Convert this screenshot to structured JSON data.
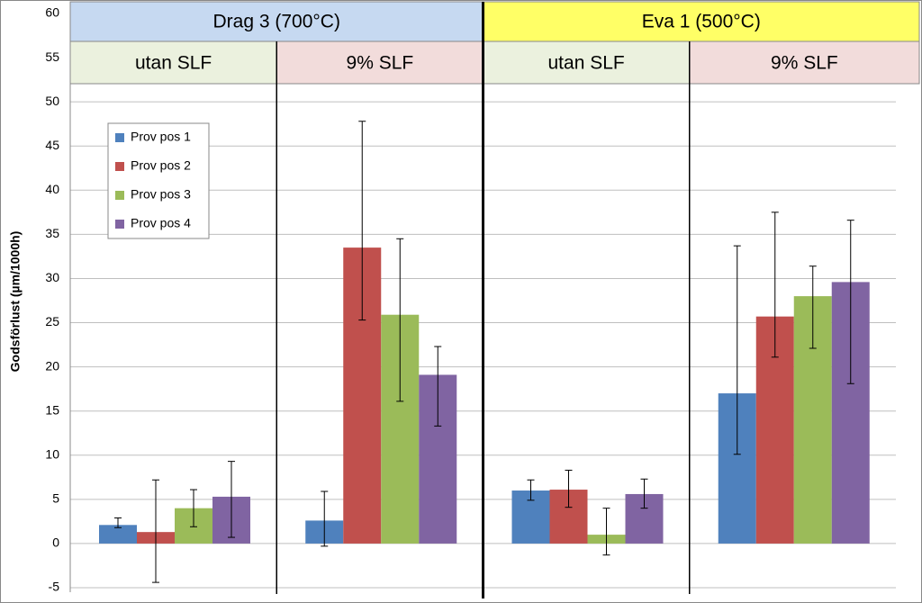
{
  "chart_data": {
    "type": "bar",
    "y_label": "Godsförlust (µm/1000h)",
    "group_labels": [
      "Drag 3 (700°C)",
      "Eva 1 (500°C)"
    ],
    "group_colors": [
      "#c6d9f1",
      "#ffff66"
    ],
    "categories": [
      "utan SLF",
      "9% SLF",
      "utan SLF",
      "9% SLF"
    ],
    "category_colors": [
      "#ebf1de",
      "#f2dcdb",
      "#ebf1de",
      "#f2dcdb"
    ],
    "series": [
      {
        "name": "Prov pos 1",
        "color": "#4f81bd",
        "values": [
          2.1,
          2.6,
          6.0,
          17.0
        ],
        "error_plus": [
          0.8,
          3.3,
          1.2,
          16.7
        ],
        "error_minus": [
          0.3,
          2.9,
          1.1,
          6.9
        ]
      },
      {
        "name": "Prov pos 2",
        "color": "#c0504d",
        "values": [
          1.3,
          33.5,
          6.1,
          25.7
        ],
        "error_plus": [
          5.9,
          14.3,
          2.2,
          11.8
        ],
        "error_minus": [
          5.7,
          8.2,
          2.0,
          4.6
        ]
      },
      {
        "name": "Prov pos 3",
        "color": "#9bbb59",
        "values": [
          4.0,
          25.9,
          1.0,
          28.0
        ],
        "error_plus": [
          2.1,
          8.6,
          3.0,
          3.4
        ],
        "error_minus": [
          2.1,
          9.8,
          2.3,
          5.9
        ]
      },
      {
        "name": "Prov pos 4",
        "color": "#8064a2",
        "values": [
          5.3,
          19.1,
          5.6,
          29.6
        ],
        "error_plus": [
          4.0,
          3.2,
          1.7,
          7.0
        ],
        "error_minus": [
          4.6,
          5.8,
          1.6,
          11.5
        ]
      }
    ],
    "ylim": [
      -5,
      60
    ],
    "yticks": [
      -5,
      0,
      5,
      10,
      15,
      20,
      25,
      30,
      35,
      40,
      45,
      50,
      55,
      60
    ],
    "grid": true,
    "legend": "upper left"
  }
}
